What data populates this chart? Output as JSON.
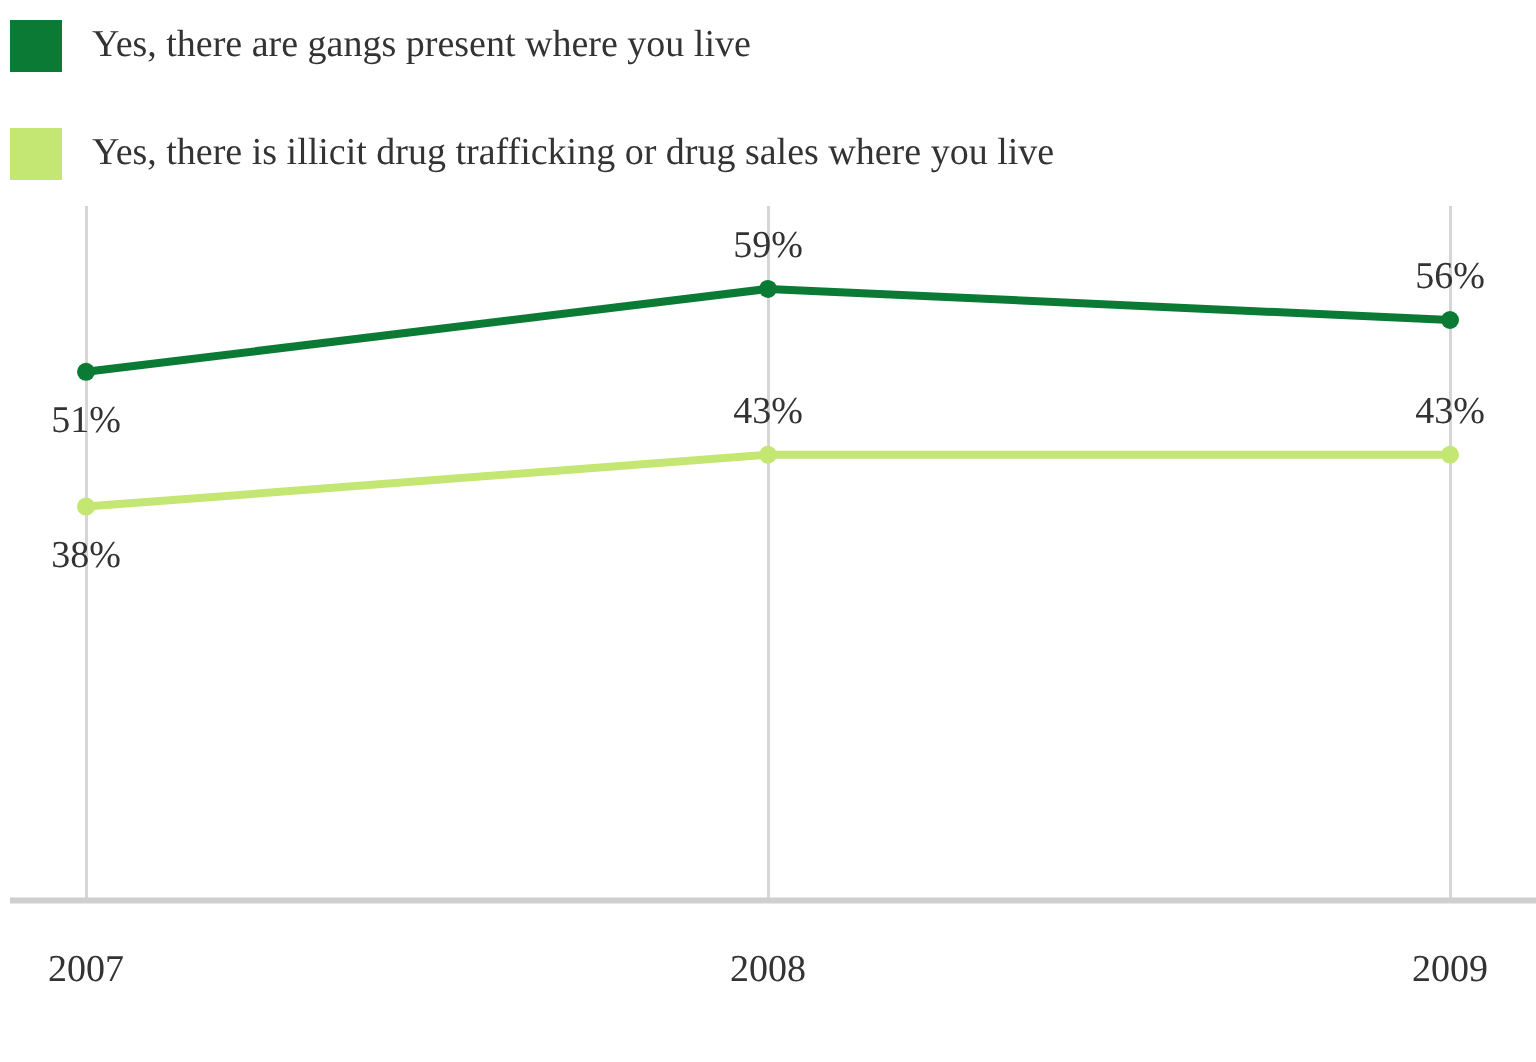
{
  "chart_data": {
    "type": "line",
    "categories": [
      "2007",
      "2008",
      "2009"
    ],
    "series": [
      {
        "name": "Yes, there are gangs present where you live",
        "color": "#0b7a35",
        "values": [
          51,
          59,
          56
        ],
        "value_labels": [
          "51%",
          "59%",
          "56%"
        ]
      },
      {
        "name": "Yes, there is illicit drug trafficking or drug sales where you live",
        "color": "#c4e673",
        "values": [
          38,
          43,
          43
        ],
        "value_labels": [
          "38%",
          "43%",
          "43%"
        ]
      }
    ],
    "ylim": [
      0,
      67
    ],
    "grid": "x",
    "legend": "top left",
    "tick_labels": "x",
    "marker": "circle"
  }
}
